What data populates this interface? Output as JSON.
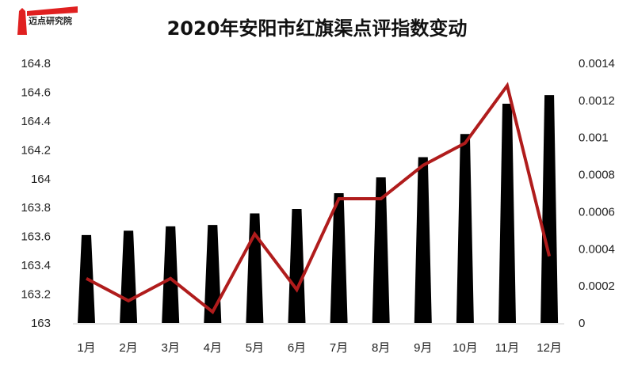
{
  "logo": {
    "text": "迈点研究院"
  },
  "title": "2020年安阳市红旗渠点评指数变动",
  "chart_data": {
    "type": "bar+line",
    "title": "2020年安阳市红旗渠点评指数变动",
    "categories": [
      "1月",
      "2月",
      "3月",
      "4月",
      "5月",
      "6月",
      "7月",
      "8月",
      "9月",
      "10月",
      "11月",
      "12月"
    ],
    "series": [
      {
        "type": "bar",
        "axis": "left",
        "color": "#000000",
        "values": [
          163.61,
          163.64,
          163.67,
          163.68,
          163.76,
          163.79,
          163.9,
          164.01,
          164.15,
          164.31,
          164.52,
          164.58
        ]
      },
      {
        "type": "line",
        "axis": "right",
        "color": "#b01c1c",
        "values": [
          0.00024,
          0.00012,
          0.00024,
          6e-05,
          0.00048,
          0.00018,
          0.00067,
          0.00067,
          0.00085,
          0.00097,
          0.00128,
          0.00036
        ]
      }
    ],
    "y_left": {
      "range": [
        163,
        164.8
      ],
      "ticks": [
        "163",
        "163.2",
        "163.4",
        "163.6",
        "163.8",
        "164",
        "164.2",
        "164.4",
        "164.6",
        "164.8"
      ]
    },
    "y_right": {
      "range": [
        0,
        0.0014
      ],
      "ticks": [
        "0",
        "0.0002",
        "0.0004",
        "0.0006",
        "0.0008",
        "0.001",
        "0.0012",
        "0.0014"
      ]
    },
    "grid": false,
    "legend": "none"
  }
}
